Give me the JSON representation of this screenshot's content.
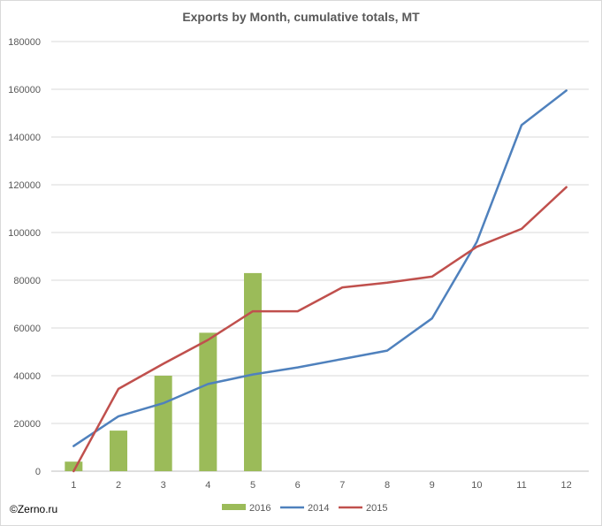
{
  "chart_data": {
    "type": "bar",
    "title": "Exports by Month, cumulative totals, MT",
    "xlabel": "",
    "ylabel": "",
    "categories": [
      "1",
      "2",
      "3",
      "4",
      "5",
      "6",
      "7",
      "8",
      "9",
      "10",
      "11",
      "12"
    ],
    "ylim": [
      0,
      180000
    ],
    "yticks": [
      0,
      20000,
      40000,
      60000,
      80000,
      100000,
      120000,
      140000,
      160000,
      180000
    ],
    "grid": true,
    "legend_position": "bottom",
    "series": [
      {
        "name": "2016",
        "kind": "bar",
        "color": "#9bbb59",
        "values": [
          4000,
          17000,
          40000,
          58000,
          83000,
          null,
          null,
          null,
          null,
          null,
          null,
          null
        ]
      },
      {
        "name": "2014",
        "kind": "line",
        "color": "#4f81bd",
        "values": [
          10500,
          23000,
          28500,
          36500,
          40500,
          43500,
          47000,
          50500,
          64000,
          96000,
          145000,
          159500
        ]
      },
      {
        "name": "2015",
        "kind": "line",
        "color": "#c0504d",
        "values": [
          0,
          34500,
          45000,
          55000,
          67000,
          67000,
          77000,
          79000,
          81500,
          94000,
          101500,
          119000
        ]
      }
    ]
  },
  "footer": {
    "copyright": "©Zerno.ru"
  }
}
